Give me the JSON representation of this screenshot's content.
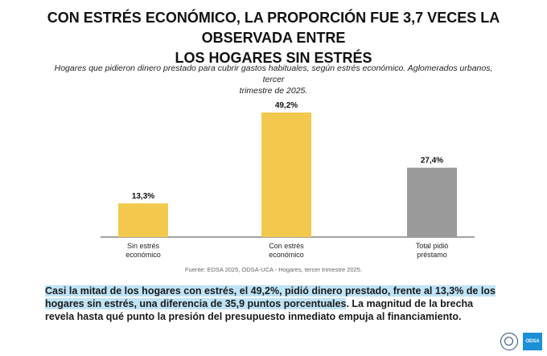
{
  "title_line1": "CON ESTRÉS ECONÓMICO, LA PROPORCIÓN FUE 3,7 VECES LA OBSERVADA ENTRE",
  "title_line2": "LOS HOGARES SIN ESTRÉS",
  "subtitle_line1": "Hogares que pidieron dinero prestado para cubrir gastos habituales, según estrés económico. Aglomerados urbanos, tercer",
  "subtitle_line2": "trimestre de 2025.",
  "source": "Fuente: EDSA 2025, ODSA-UCA - Hogares, tercer trimestre 2025.",
  "bottom_text": {
    "highlighted": "Casi la mitad de los hogares con estrés, el 49,2%, pidió dinero prestado, frente al 13,3% de los hogares sin estrés, una diferencia de 35,9 puntos porcentuales",
    "rest": ". La magnitud de la brecha revela hasta qué punto la presión del presupuesto inmediato empuja al financiamiento."
  },
  "logo_label": "ODSA",
  "chart_data": {
    "type": "bar",
    "categories": [
      [
        "Sin estrés",
        "económico"
      ],
      [
        "Con estrés",
        "económico"
      ],
      [
        "Total pidió",
        "préstamo"
      ]
    ],
    "values": [
      13.3,
      49.2,
      27.4
    ],
    "labels": [
      "13,3%",
      "49,2%",
      "27,4%"
    ],
    "colors": [
      "#f2c94c",
      "#f2c94c",
      "#9a9a9a"
    ],
    "ylim": [
      0,
      49.2
    ],
    "grid": false
  }
}
